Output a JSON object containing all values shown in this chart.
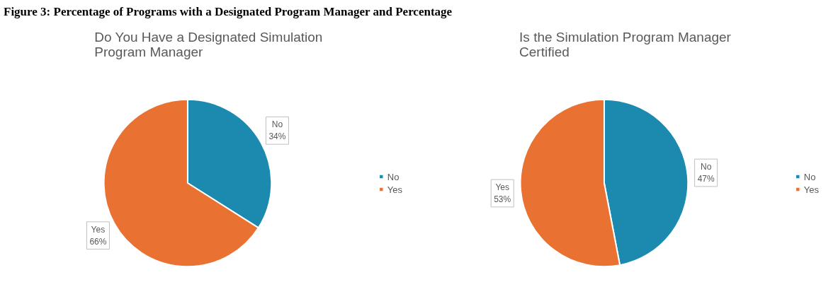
{
  "chart_data": [
    {
      "type": "pie",
      "title": "Do You Have a Designated Simulation Program Manager",
      "annotations": [
        "Figure 3: Percentage of Programs with a Designated Program Manager and Percentage"
      ],
      "categories": [
        "No",
        "Yes"
      ],
      "values": [
        34,
        66
      ],
      "value_labels": [
        "34%",
        "66%"
      ],
      "colors": [
        "#1b8aae",
        "#e97132"
      ],
      "legend": "right"
    },
    {
      "type": "pie",
      "title": "Is the Simulation Program Manager Certified",
      "categories": [
        "No",
        "Yes"
      ],
      "values": [
        47,
        53
      ],
      "value_labels": [
        "47%",
        "53%"
      ],
      "colors": [
        "#1b8aae",
        "#e97132"
      ],
      "legend": "right"
    }
  ]
}
